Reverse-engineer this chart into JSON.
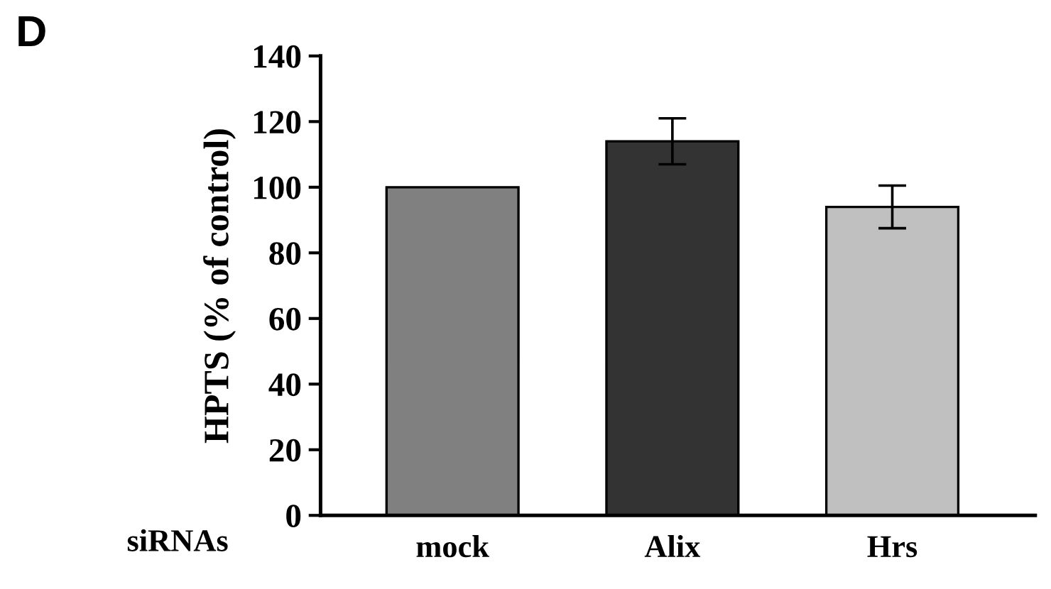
{
  "chart_data": {
    "type": "bar",
    "xlabel": "siRNAs",
    "ylabel": "HPTS (% of control)",
    "categories": [
      "mock",
      "Alix",
      "Hrs"
    ],
    "values": [
      100,
      114,
      94
    ],
    "errors": [
      null,
      7,
      6.5
    ],
    "colors": [
      "#808080",
      "#333333",
      "#c0c0c0"
    ],
    "ylim": [
      0,
      140
    ],
    "yticks": [
      0,
      20,
      40,
      60,
      80,
      100,
      120,
      140
    ],
    "grid": false,
    "annotations": [
      "D"
    ]
  }
}
